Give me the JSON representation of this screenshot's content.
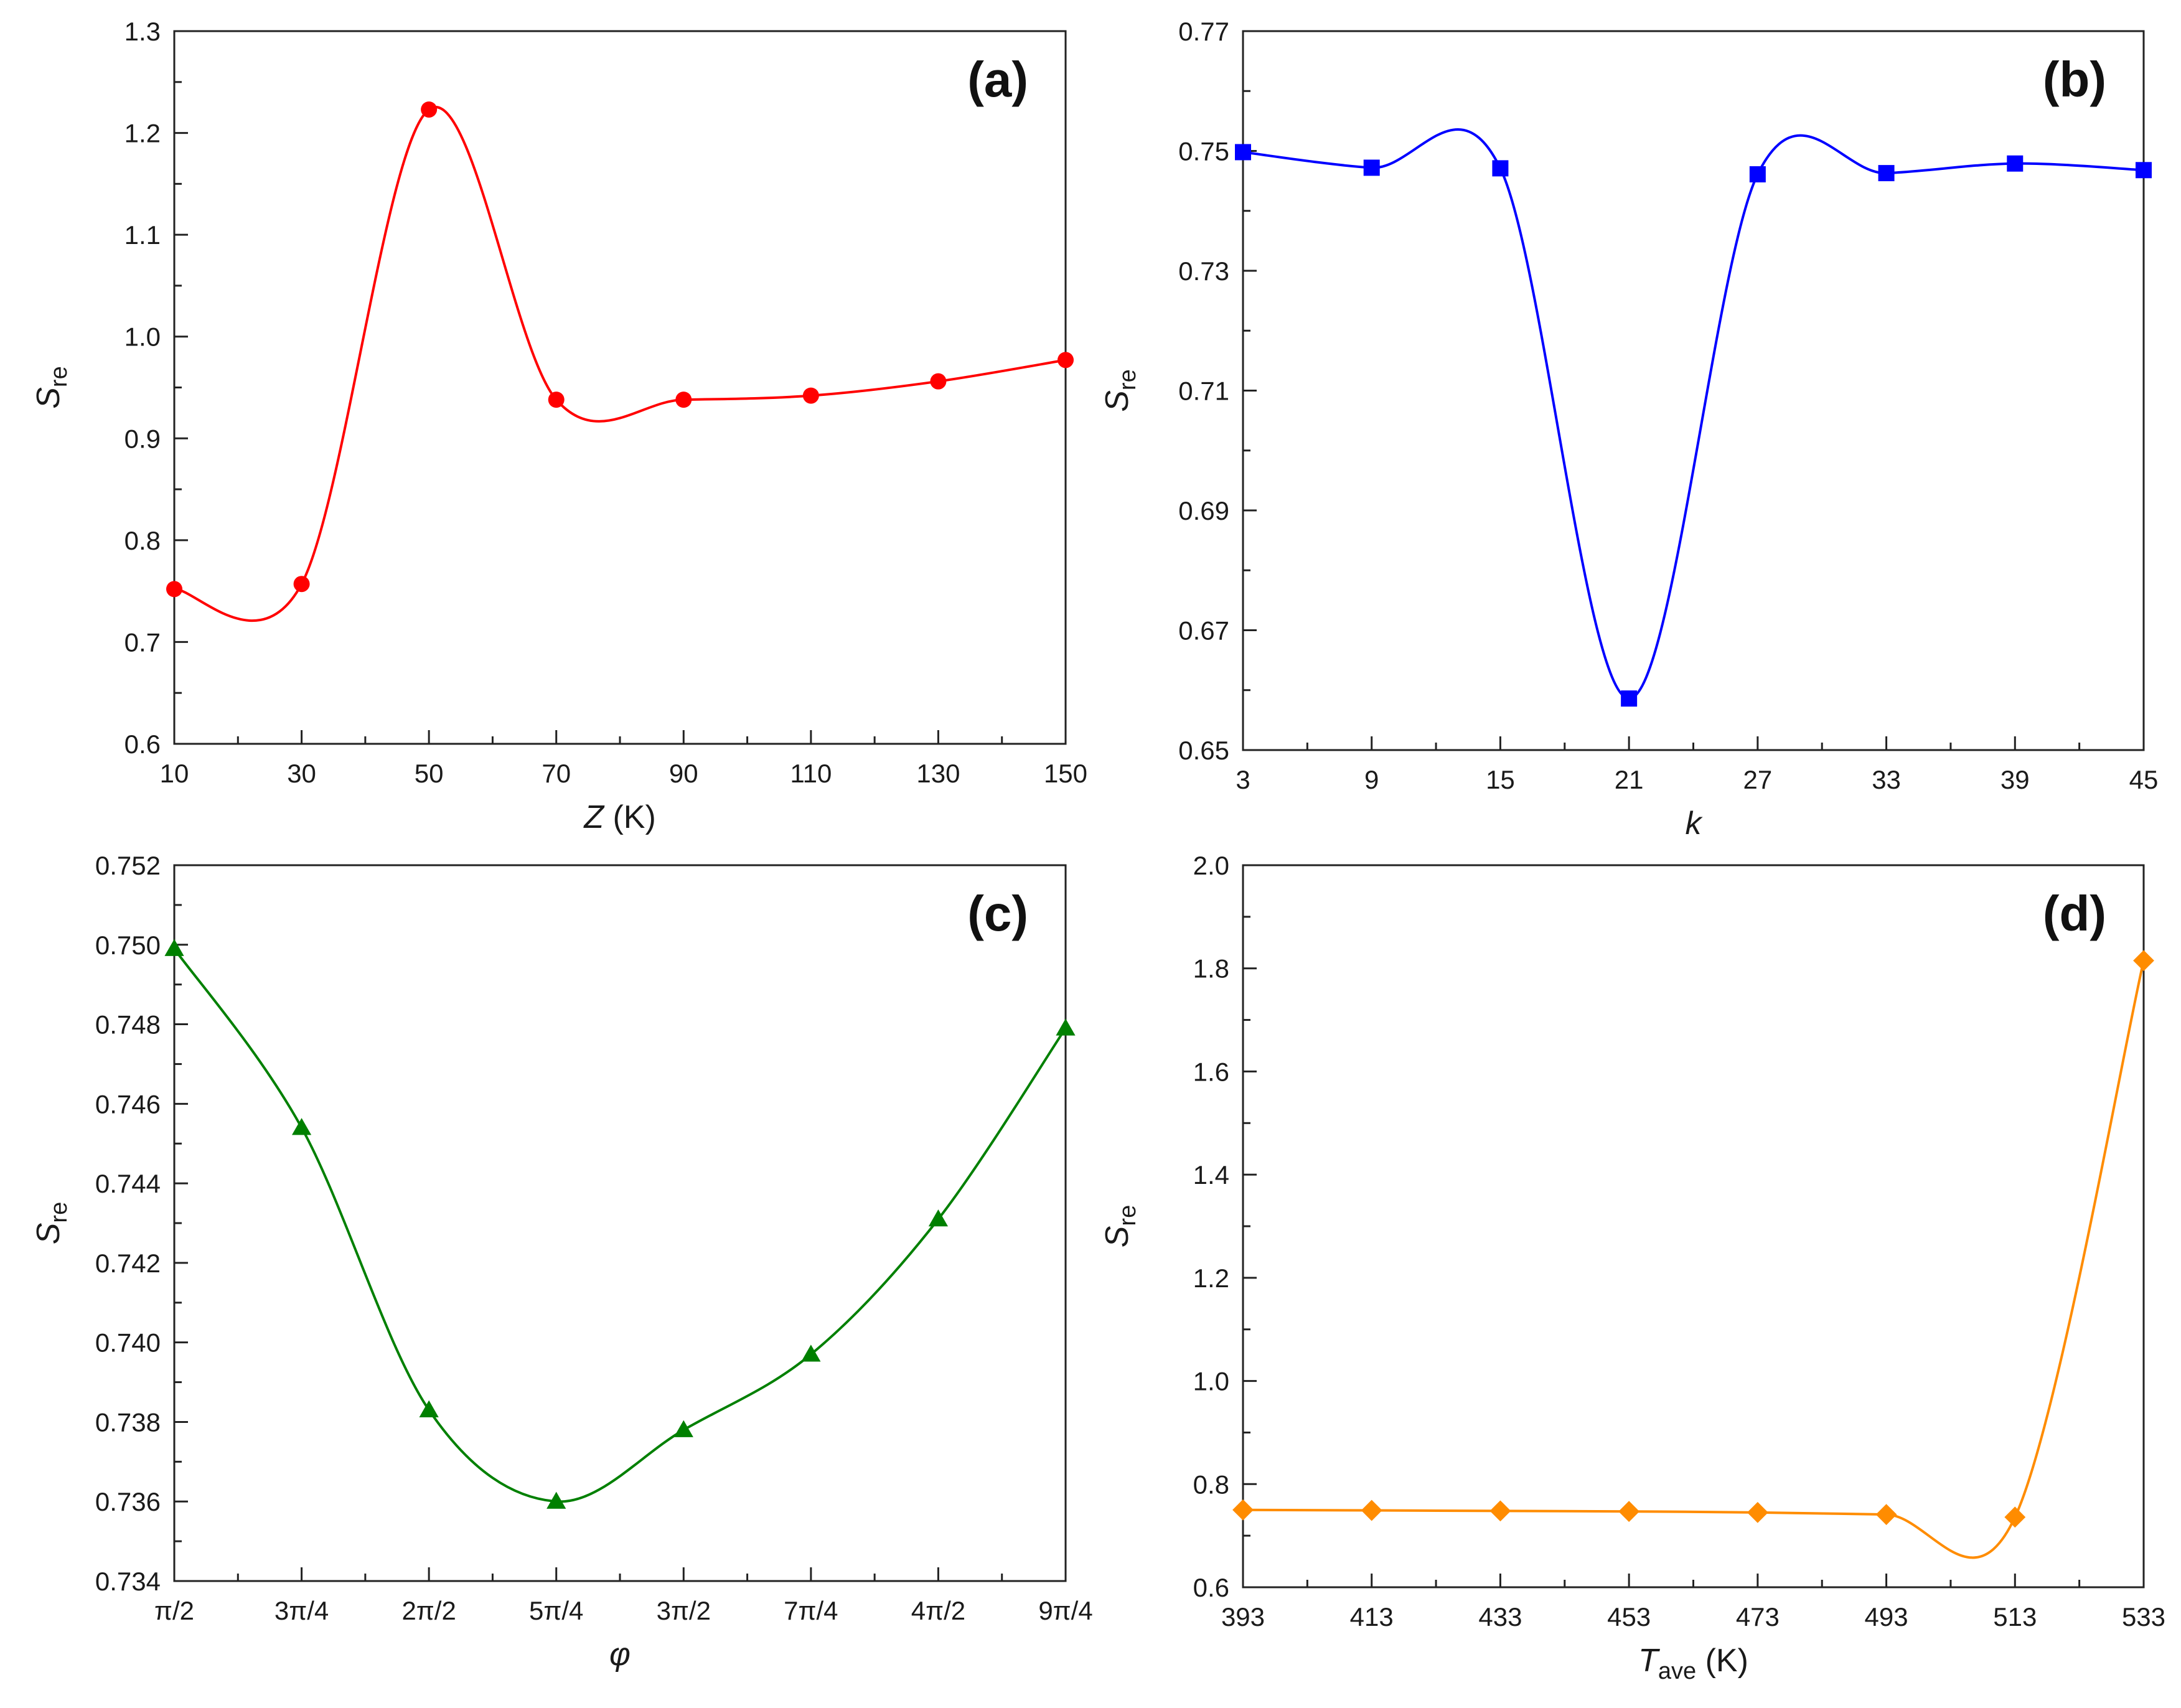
{
  "chart_data": [
    {
      "type": "line",
      "panel": "(a)",
      "xlabel_var": "Z",
      "xlabel_unit": " (K)",
      "ylabel_main": "S",
      "ylabel_sub": "re",
      "xlim": [
        10,
        150
      ],
      "ylim": [
        0.6,
        1.3
      ],
      "xticks": [
        10,
        30,
        50,
        70,
        90,
        110,
        130,
        150
      ],
      "xtick_labels": [
        "10",
        "30",
        "50",
        "70",
        "90",
        "110",
        "130",
        "150"
      ],
      "yticks": [
        0.6,
        0.7,
        0.8,
        0.9,
        1.0,
        1.1,
        1.2,
        1.3
      ],
      "ytick_labels": [
        "0.6",
        "0.7",
        "0.8",
        "0.9",
        "1.0",
        "1.1",
        "1.2",
        "1.3"
      ],
      "marker": "circle",
      "color": "#ff0000",
      "x": [
        10,
        30,
        50,
        70,
        90,
        110,
        130,
        150
      ],
      "y": [
        0.752,
        0.757,
        1.223,
        0.938,
        0.938,
        0.942,
        0.956,
        0.977
      ]
    },
    {
      "type": "line",
      "panel": "(b)",
      "xlabel_var": "k",
      "xlabel_unit": "",
      "ylabel_main": "S",
      "ylabel_sub": "re",
      "xlim": [
        3,
        45
      ],
      "ylim": [
        0.65,
        0.77
      ],
      "xticks": [
        3,
        9,
        15,
        21,
        27,
        33,
        39,
        45
      ],
      "xtick_labels": [
        "3",
        "9",
        "15",
        "21",
        "27",
        "33",
        "39",
        "45"
      ],
      "yticks": [
        0.65,
        0.67,
        0.69,
        0.71,
        0.73,
        0.75,
        0.77
      ],
      "ytick_labels": [
        "0.65",
        "0.67",
        "0.69",
        "0.71",
        "0.73",
        "0.75",
        "0.77"
      ],
      "marker": "square",
      "color": "#0000ff",
      "x": [
        3,
        9,
        15,
        21,
        27,
        33,
        39,
        45
      ],
      "y": [
        0.7498,
        0.7472,
        0.7471,
        0.6586,
        0.7461,
        0.7463,
        0.7479,
        0.7468
      ]
    },
    {
      "type": "line",
      "panel": "(c)",
      "xlabel_var": "φ",
      "xlabel_unit": "",
      "ylabel_main": "S",
      "ylabel_sub": "re",
      "xlim": [
        0,
        7
      ],
      "ylim": [
        0.734,
        0.752
      ],
      "xticks": [
        0,
        1,
        2,
        3,
        4,
        5,
        6,
        7
      ],
      "xtick_labels": [
        "π/2",
        "3π/4",
        "2π/2",
        "5π/4",
        "3π/2",
        "7π/4",
        "4π/2",
        "9π/4"
      ],
      "yticks": [
        0.734,
        0.736,
        0.738,
        0.74,
        0.742,
        0.744,
        0.746,
        0.748,
        0.75,
        0.752
      ],
      "ytick_labels": [
        "0.734",
        "0.736",
        "0.738",
        "0.740",
        "0.742",
        "0.744",
        "0.746",
        "0.748",
        "0.750",
        "0.752"
      ],
      "marker": "triangle",
      "color": "#008000",
      "x": [
        0,
        1,
        2,
        3,
        4,
        5,
        6,
        7
      ],
      "y": [
        0.7499,
        0.7454,
        0.7383,
        0.736,
        0.7378,
        0.7397,
        0.7431,
        0.7479
      ]
    },
    {
      "type": "line",
      "panel": "(d)",
      "xlabel_var": "T",
      "xlabel_var_sub": "ave",
      "xlabel_unit": " (K)",
      "ylabel_main": "S",
      "ylabel_sub": "re",
      "xlim": [
        393,
        533
      ],
      "ylim": [
        0.6,
        2.0
      ],
      "xticks": [
        393,
        413,
        433,
        453,
        473,
        493,
        513,
        533
      ],
      "xtick_labels": [
        "393",
        "413",
        "433",
        "453",
        "473",
        "493",
        "513",
        "533"
      ],
      "yticks": [
        0.6,
        0.8,
        1.0,
        1.2,
        1.4,
        1.6,
        1.8,
        2.0
      ],
      "ytick_labels": [
        "0.6",
        "0.8",
        "1.0",
        "1.2",
        "1.4",
        "1.6",
        "1.8",
        "2.0"
      ],
      "marker": "diamond",
      "color": "#ff8c00",
      "x": [
        393,
        413,
        433,
        453,
        473,
        493,
        513,
        533
      ],
      "y": [
        0.75,
        0.749,
        0.748,
        0.747,
        0.745,
        0.741,
        0.736,
        1.815
      ]
    }
  ]
}
